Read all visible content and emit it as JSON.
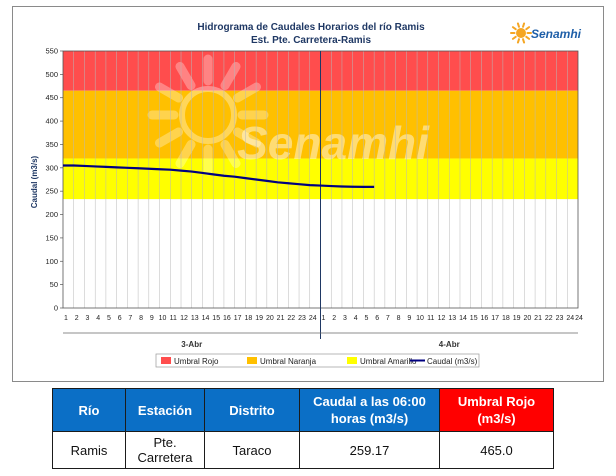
{
  "chart_data": {
    "type": "line",
    "title": "Hidrograma de Caudales Horarios del río Ramis",
    "subtitle": "Est. Pte. Carretera-Ramis",
    "ylabel": "Caudal  (m3/s)",
    "xlabel": "",
    "ylim": [
      0,
      550
    ],
    "yticks": [
      0,
      50,
      100,
      150,
      200,
      250,
      300,
      350,
      400,
      450,
      500,
      550
    ],
    "hour_ticks": [
      "1",
      "2",
      "3",
      "4",
      "5",
      "6",
      "7",
      "8",
      "9",
      "10",
      "11",
      "12",
      "13",
      "14",
      "15",
      "16",
      "17",
      "18",
      "19",
      "20",
      "21",
      "22",
      "23",
      "24",
      "1",
      "2",
      "3",
      "4",
      "5",
      "6",
      "7",
      "8",
      "9",
      "10",
      "11",
      "12",
      "13",
      "14",
      "15",
      "16",
      "17",
      "18",
      "19",
      "20",
      "21",
      "22",
      "23",
      "24"
    ],
    "days": [
      "3-Abr",
      "4-Abr"
    ],
    "thresholds": [
      {
        "name": "Umbral Rojo",
        "from": 465,
        "to": 550,
        "color": "#ff4d4d"
      },
      {
        "name": "Umbral Naranja",
        "from": 320,
        "to": 465,
        "color": "#ffc000"
      },
      {
        "name": "Umbral Amarillo",
        "from": 233,
        "to": 320,
        "color": "#ffff00"
      }
    ],
    "series": [
      {
        "name": "Caudal (m3/s)",
        "color": "#000080",
        "x": [
          1,
          2,
          3,
          4,
          5,
          6,
          7,
          8,
          9,
          10,
          11,
          12,
          13,
          14,
          15,
          16,
          17,
          18,
          19,
          20,
          21,
          22,
          23,
          24,
          25,
          26,
          27,
          28,
          29,
          30
        ],
        "values": [
          305,
          305,
          304,
          303,
          302,
          301,
          300,
          299,
          298,
          297,
          296,
          294,
          292,
          289,
          286,
          283,
          281,
          278,
          275,
          272,
          269,
          267,
          265,
          263,
          262,
          261,
          260,
          259.5,
          259.2,
          259.17
        ]
      }
    ],
    "legend_position": "bottom",
    "grid": "vertical"
  },
  "watermark": "Senamhi",
  "logo": {
    "text": "Senamhi"
  },
  "table": {
    "headers": {
      "rio": "Río",
      "estacion": "Estación",
      "distrito": "Distrito",
      "caudal": "Caudal a las 06:00 horas (m3/s)",
      "umbral": "Umbral Rojo (m3/s)"
    },
    "row": {
      "rio": "Ramis",
      "estacion": "Pte. Carretera",
      "distrito": "Taraco",
      "caudal": "259.17",
      "umbral": "465.0"
    }
  }
}
